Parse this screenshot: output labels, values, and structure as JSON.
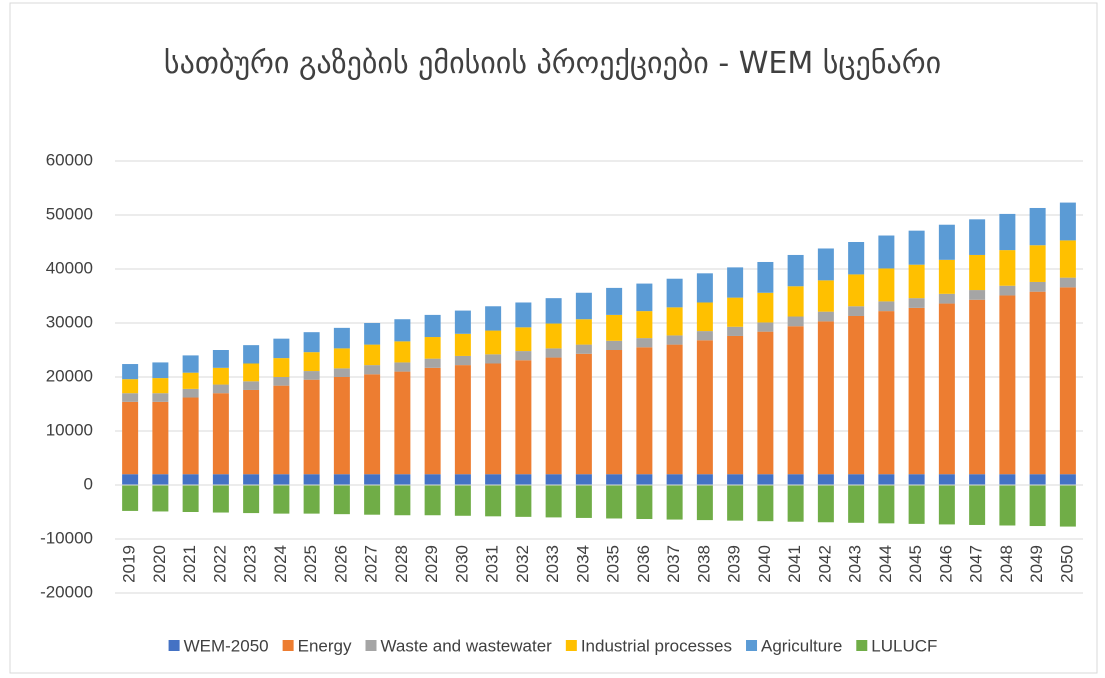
{
  "chart_data": {
    "type": "bar",
    "stacked": true,
    "title": "სათბური გაზების ემისიის პროექციები - WEM სცენარი",
    "categories": [
      "2019",
      "2020",
      "2021",
      "2022",
      "2023",
      "2024",
      "2025",
      "2026",
      "2027",
      "2028",
      "2029",
      "2030",
      "2031",
      "2032",
      "2033",
      "2034",
      "2035",
      "2036",
      "2037",
      "2038",
      "2039",
      "2040",
      "2041",
      "2042",
      "2043",
      "2044",
      "2045",
      "2046",
      "2047",
      "2048",
      "2049",
      "2050"
    ],
    "series": [
      {
        "name": "WEM-2050",
        "color": "#4472c4",
        "values": [
          2000,
          2000,
          2000,
          2000,
          2000,
          2000,
          2000,
          2000,
          2000,
          2000,
          2000,
          2000,
          2000,
          2000,
          2000,
          2000,
          2000,
          2000,
          2000,
          2000,
          2000,
          2000,
          2000,
          2000,
          2000,
          2000,
          2000,
          2000,
          2000,
          2000,
          2000,
          2000
        ]
      },
      {
        "name": "Energy",
        "color": "#ed7d31",
        "values": [
          13400,
          13400,
          14200,
          15000,
          15600,
          16400,
          17500,
          18000,
          18500,
          19000,
          19700,
          20200,
          20500,
          21100,
          21600,
          22300,
          23000,
          23500,
          24000,
          24800,
          25600,
          26400,
          27400,
          28300,
          29300,
          30200,
          30800,
          31600,
          32300,
          33100,
          33800,
          34600
        ]
      },
      {
        "name": "Waste and wastewater",
        "color": "#a5a5a5",
        "values": [
          1600,
          1600,
          1600,
          1600,
          1600,
          1600,
          1600,
          1600,
          1700,
          1700,
          1700,
          1700,
          1700,
          1700,
          1700,
          1700,
          1700,
          1700,
          1700,
          1700,
          1700,
          1700,
          1800,
          1800,
          1800,
          1800,
          1800,
          1800,
          1800,
          1800,
          1800,
          1800
        ]
      },
      {
        "name": "Industrial processes",
        "color": "#ffc000",
        "values": [
          2600,
          2800,
          3000,
          3100,
          3300,
          3500,
          3500,
          3700,
          3800,
          3900,
          4000,
          4100,
          4400,
          4400,
          4600,
          4700,
          4800,
          5000,
          5200,
          5300,
          5400,
          5500,
          5600,
          5800,
          5900,
          6100,
          6200,
          6300,
          6500,
          6600,
          6800,
          6900
        ]
      },
      {
        "name": "Agriculture",
        "color": "#5b9bd5",
        "values": [
          2800,
          2900,
          3200,
          3300,
          3400,
          3600,
          3700,
          3800,
          4000,
          4100,
          4100,
          4300,
          4500,
          4600,
          4700,
          4900,
          5000,
          5100,
          5300,
          5400,
          5600,
          5700,
          5800,
          5900,
          6000,
          6100,
          6300,
          6500,
          6600,
          6700,
          6900,
          7000
        ]
      },
      {
        "name": "LULUCF",
        "color": "#70ad47",
        "values": [
          -4800,
          -4900,
          -5000,
          -5100,
          -5200,
          -5300,
          -5300,
          -5400,
          -5500,
          -5600,
          -5600,
          -5700,
          -5800,
          -5900,
          -6000,
          -6100,
          -6200,
          -6300,
          -6400,
          -6500,
          -6600,
          -6700,
          -6800,
          -6900,
          -7000,
          -7100,
          -7200,
          -7300,
          -7400,
          -7500,
          -7600,
          -7700
        ]
      }
    ],
    "ylim": [
      -20000,
      60000
    ],
    "yticks": [
      -20000,
      -10000,
      0,
      10000,
      20000,
      30000,
      40000,
      50000,
      60000
    ],
    "grid": true,
    "legend": "bottom"
  }
}
